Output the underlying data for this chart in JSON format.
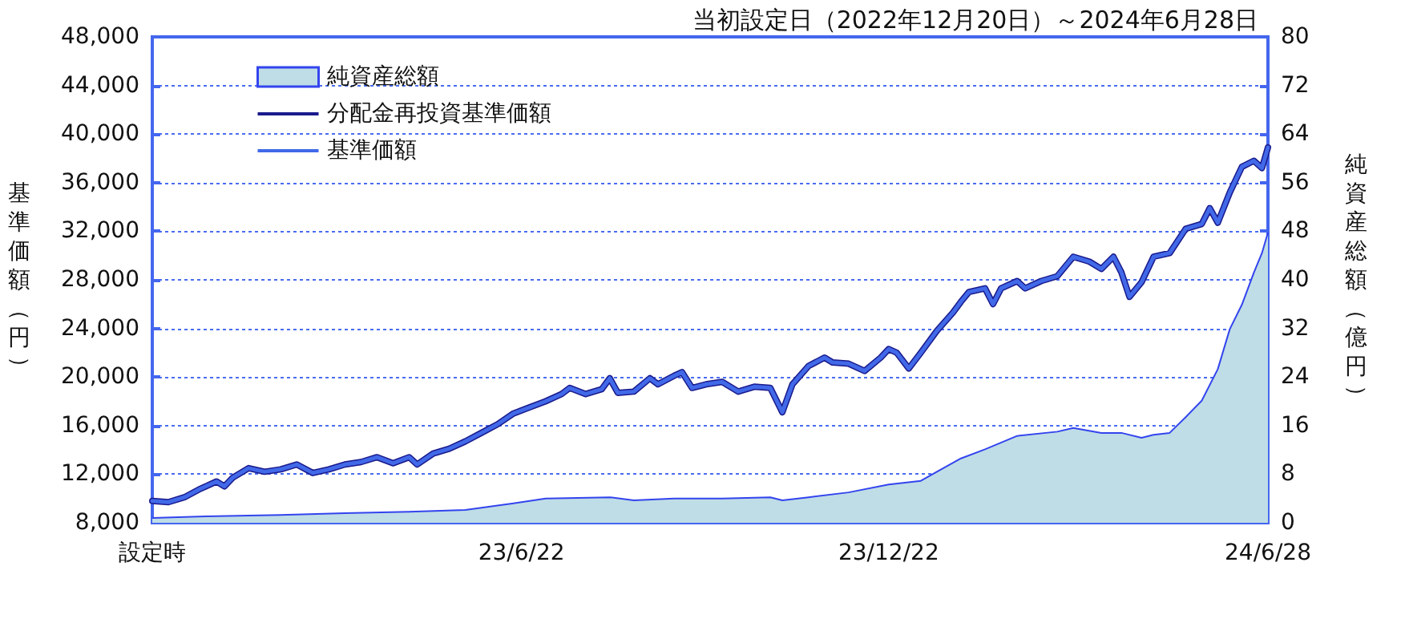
{
  "chart_data": {
    "type": "line",
    "title": "当初設定日（2022年12月20日）～2024年6月28日",
    "ylabel": "基準価額（円）",
    "y2label": "純資産総額（億円）",
    "x": [
      "2022-12-20",
      "2022-12-28",
      "2023-01-05",
      "2023-01-13",
      "2023-01-21",
      "2023-01-25",
      "2023-01-29",
      "2023-02-06",
      "2023-02-14",
      "2023-02-22",
      "2023-03-02",
      "2023-03-10",
      "2023-03-18",
      "2023-03-26",
      "2023-04-03",
      "2023-04-11",
      "2023-04-19",
      "2023-04-27",
      "2023-05-01",
      "2023-05-09",
      "2023-05-17",
      "2023-05-25",
      "2023-06-02",
      "2023-06-10",
      "2023-06-18",
      "2023-06-26",
      "2023-07-04",
      "2023-07-12",
      "2023-07-16",
      "2023-07-24",
      "2023-08-01",
      "2023-08-05",
      "2023-08-09",
      "2023-08-17",
      "2023-08-25",
      "2023-08-29",
      "2023-09-06",
      "2023-09-10",
      "2023-09-15",
      "2023-09-22",
      "2023-09-30",
      "2023-10-08",
      "2023-10-16",
      "2023-10-24",
      "2023-10-30",
      "2023-11-04",
      "2023-11-12",
      "2023-11-20",
      "2023-11-24",
      "2023-12-02",
      "2023-12-10",
      "2023-12-18",
      "2023-12-22",
      "2023-12-26",
      "2024-01-01",
      "2024-01-07",
      "2024-01-15",
      "2024-01-23",
      "2024-01-27",
      "2024-01-31",
      "2024-02-08",
      "2024-02-12",
      "2024-02-16",
      "2024-02-24",
      "2024-02-28",
      "2024-03-07",
      "2024-03-15",
      "2024-03-23",
      "2024-03-31",
      "2024-04-06",
      "2024-04-12",
      "2024-04-16",
      "2024-04-20",
      "2024-04-26",
      "2024-05-02",
      "2024-05-10",
      "2024-05-18",
      "2024-05-26",
      "2024-05-30",
      "2024-06-03",
      "2024-06-09",
      "2024-06-15",
      "2024-06-21",
      "2024-06-25",
      "2024-06-28"
    ],
    "series": [
      {
        "name": "純資産総額",
        "type": "area",
        "axis": "y2",
        "color": "#bfdde6",
        "x": [
          "2022-12-20",
          "2023-01-21",
          "2023-02-22",
          "2023-03-26",
          "2023-04-27",
          "2023-05-25",
          "2023-06-18",
          "2023-07-04",
          "2023-08-05",
          "2023-08-17",
          "2023-09-06",
          "2023-09-30",
          "2023-10-24",
          "2023-10-30",
          "2023-11-12",
          "2023-12-02",
          "2023-12-22",
          "2024-01-07",
          "2024-01-15",
          "2024-01-27",
          "2024-02-08",
          "2024-02-24",
          "2024-03-15",
          "2024-03-23",
          "2024-04-06",
          "2024-04-16",
          "2024-04-26",
          "2024-05-02",
          "2024-05-10",
          "2024-05-18",
          "2024-05-26",
          "2024-06-03",
          "2024-06-09",
          "2024-06-15",
          "2024-06-21",
          "2024-06-25",
          "2024-06-28"
        ],
        "values": [
          0.8,
          1.1,
          1.3,
          1.6,
          1.8,
          2.1,
          3.2,
          4.0,
          4.2,
          3.7,
          4.0,
          4.0,
          4.2,
          3.7,
          4.2,
          5.0,
          6.3,
          6.9,
          8.4,
          10.6,
          12.1,
          14.3,
          15.0,
          15.6,
          14.8,
          14.8,
          14.0,
          14.5,
          14.8,
          17.4,
          20.1,
          25.3,
          31.9,
          35.9,
          41.2,
          44.4,
          47.8
        ]
      },
      {
        "name": "分配金再投資基準価額",
        "color": "#1a1a8c",
        "values": [
          9800,
          9700,
          10100,
          10800,
          11400,
          11000,
          11700,
          12500,
          12200,
          12400,
          12800,
          12100,
          12400,
          12800,
          13000,
          13400,
          12900,
          13400,
          12800,
          13700,
          14100,
          14700,
          15400,
          16100,
          17000,
          17500,
          18000,
          18600,
          19100,
          18600,
          19000,
          19900,
          18700,
          18800,
          19900,
          19400,
          20100,
          20400,
          19100,
          19400,
          19600,
          18800,
          19200,
          19100,
          17100,
          19400,
          20900,
          21600,
          21200,
          21100,
          20500,
          21600,
          22300,
          22000,
          20700,
          22000,
          23800,
          25300,
          26200,
          27000,
          27300,
          26000,
          27300,
          27900,
          27300,
          27900,
          28300,
          29900,
          29500,
          28900,
          29900,
          28600,
          26600,
          27800,
          29900,
          30200,
          32200,
          32600,
          33900,
          32700,
          35200,
          37300,
          37800,
          37200,
          38900
        ]
      },
      {
        "name": "基準価額",
        "color": "#4169e8",
        "values": [
          9800,
          9700,
          10100,
          10800,
          11400,
          11000,
          11700,
          12500,
          12200,
          12400,
          12800,
          12100,
          12400,
          12800,
          13000,
          13400,
          12900,
          13400,
          12800,
          13700,
          14100,
          14700,
          15400,
          16100,
          17000,
          17500,
          18000,
          18600,
          19100,
          18600,
          19000,
          19900,
          18700,
          18800,
          19900,
          19400,
          20100,
          20400,
          19100,
          19400,
          19600,
          18800,
          19200,
          19100,
          17100,
          19400,
          20900,
          21600,
          21200,
          21100,
          20500,
          21600,
          22300,
          22000,
          20700,
          22000,
          23800,
          25300,
          26200,
          27000,
          27300,
          26000,
          27300,
          27900,
          27300,
          27900,
          28300,
          29900,
          29500,
          28900,
          29900,
          28600,
          26600,
          27800,
          29900,
          30200,
          32200,
          32600,
          33900,
          32700,
          35200,
          37300,
          37800,
          37200,
          38900
        ]
      }
    ],
    "xlim": [
      "2022-12-20",
      "2024-06-28"
    ],
    "xticks": [
      {
        "value": "2022-12-20",
        "label": "設定時"
      },
      {
        "value": "2023-06-22",
        "label": "23/6/22"
      },
      {
        "value": "2023-12-22",
        "label": "23/12/22"
      },
      {
        "value": "2024-06-28",
        "label": "24/6/28"
      }
    ],
    "ylim": [
      8000,
      48000
    ],
    "yticks": [
      {
        "value": 8000,
        "label": "8,000"
      },
      {
        "value": 12000,
        "label": "12,000"
      },
      {
        "value": 16000,
        "label": "16,000"
      },
      {
        "value": 20000,
        "label": "20,000"
      },
      {
        "value": 24000,
        "label": "24,000"
      },
      {
        "value": 28000,
        "label": "28,000"
      },
      {
        "value": 32000,
        "label": "32,000"
      },
      {
        "value": 36000,
        "label": "36,000"
      },
      {
        "value": 40000,
        "label": "40,000"
      },
      {
        "value": 44000,
        "label": "44,000"
      },
      {
        "value": 48000,
        "label": "48,000"
      }
    ],
    "y2lim": [
      0,
      80
    ],
    "y2ticks": [
      0,
      8,
      16,
      24,
      32,
      40,
      48,
      56,
      64,
      72,
      80
    ],
    "grid": "y",
    "legend": "top left",
    "marker": "none",
    "line_style": "solid"
  }
}
